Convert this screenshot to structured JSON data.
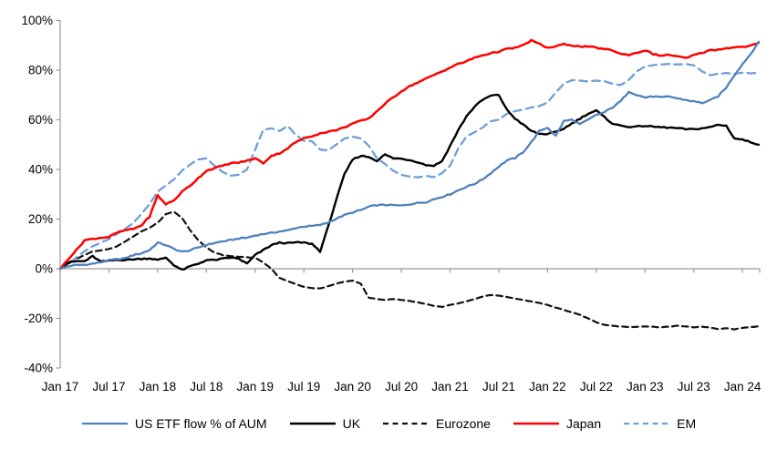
{
  "chart_data": {
    "type": "line",
    "title": "",
    "grid": "none",
    "legend_position": "bottom",
    "axis_color": "#9a9a9a",
    "text_color": "#000000",
    "y_axis": {
      "min": -40,
      "max": 100,
      "step": 20,
      "format": "percent",
      "tick_labels": [
        "100%",
        "80%",
        "60%",
        "40%",
        "20%",
        "0%",
        "-20%",
        "-40%"
      ]
    },
    "x_tick_labels": [
      "Jan 17",
      "Jul 17",
      "Jan 18",
      "Jul 18",
      "Jan 19",
      "Jul 19",
      "Jan 20",
      "Jul 20",
      "Jan 21",
      "Jul 21",
      "Jan 22",
      "Jul 22",
      "Jan 23",
      "Jul 23",
      "Jan 24"
    ],
    "x": [
      "2017-01",
      "2017-02",
      "2017-03",
      "2017-04",
      "2017-05",
      "2017-06",
      "2017-07",
      "2017-08",
      "2017-09",
      "2017-10",
      "2017-11",
      "2017-12",
      "2018-01",
      "2018-02",
      "2018-03",
      "2018-04",
      "2018-05",
      "2018-06",
      "2018-07",
      "2018-08",
      "2018-09",
      "2018-10",
      "2018-11",
      "2018-12",
      "2019-01",
      "2019-02",
      "2019-03",
      "2019-04",
      "2019-05",
      "2019-06",
      "2019-07",
      "2019-08",
      "2019-09",
      "2019-10",
      "2019-11",
      "2019-12",
      "2020-01",
      "2020-02",
      "2020-03",
      "2020-04",
      "2020-05",
      "2020-06",
      "2020-07",
      "2020-08",
      "2020-09",
      "2020-10",
      "2020-11",
      "2020-12",
      "2021-01",
      "2021-02",
      "2021-03",
      "2021-04",
      "2021-05",
      "2021-06",
      "2021-07",
      "2021-08",
      "2021-09",
      "2021-10",
      "2021-11",
      "2021-12",
      "2022-01",
      "2022-02",
      "2022-03",
      "2022-04",
      "2022-05",
      "2022-06",
      "2022-07",
      "2022-08",
      "2022-09",
      "2022-10",
      "2022-11",
      "2022-12",
      "2023-01",
      "2023-02",
      "2023-03",
      "2023-04",
      "2023-05",
      "2023-06",
      "2023-07",
      "2023-08",
      "2023-09",
      "2023-10",
      "2023-11",
      "2023-12",
      "2024-01",
      "2024-02",
      "2024-03"
    ],
    "series": [
      {
        "name": "US ETF flow % of AUM",
        "color": "#4f81bd",
        "style": "solid",
        "values": [
          0,
          1,
          1.5,
          1.6,
          2,
          2.6,
          3.4,
          3.8,
          4.2,
          5.5,
          6.2,
          7.5,
          10.5,
          9.5,
          8,
          6.8,
          7.4,
          8.6,
          9.6,
          10.4,
          11,
          11.5,
          12.2,
          12.5,
          13.4,
          14,
          14.4,
          15,
          15.4,
          16.4,
          17,
          17.2,
          17.6,
          18.6,
          20.2,
          21.6,
          22.7,
          23.6,
          25,
          25.6,
          25.7,
          25.6,
          25.4,
          26,
          26.5,
          26.8,
          28,
          29,
          30,
          31.6,
          33,
          34.2,
          36,
          38.5,
          41.2,
          43.6,
          44.6,
          47,
          51,
          55.5,
          56.9,
          53.5,
          59.5,
          60,
          58.2,
          60,
          62,
          63,
          65,
          67.5,
          71.4,
          70,
          69,
          69.4,
          69,
          69.4,
          68.6,
          68,
          67.4,
          66.8,
          67.8,
          69.5,
          73,
          78,
          82.5,
          86.5,
          91.5
        ]
      },
      {
        "name": "UK",
        "color": "#000000",
        "style": "solid",
        "values": [
          0,
          2.5,
          3,
          3,
          5,
          2.8,
          3.2,
          3.6,
          3.5,
          3.8,
          4,
          4.2,
          3.5,
          4.5,
          1.5,
          -0.5,
          1,
          2,
          3.5,
          3.5,
          4,
          4.5,
          4,
          2,
          5.5,
          7.5,
          9.5,
          10.5,
          10.3,
          10.6,
          10.5,
          10,
          7,
          17,
          28,
          38,
          44,
          45.5,
          45,
          43.5,
          46,
          44.5,
          44.3,
          43.8,
          43,
          41.8,
          41.5,
          43.3,
          49.5,
          55.8,
          61.3,
          65.3,
          68,
          69.7,
          70,
          64,
          60.5,
          58,
          55.5,
          54.3,
          54.3,
          55,
          56.5,
          58.5,
          60.5,
          62.5,
          63.7,
          61,
          58.5,
          57.6,
          57.2,
          57.2,
          57.6,
          57.2,
          57,
          56.8,
          56.6,
          56.2,
          56.2,
          56.6,
          57,
          58,
          57.6,
          52.5,
          52,
          51,
          50
        ]
      },
      {
        "name": "Eurozone",
        "color": "#111111",
        "style": "dashed",
        "values": [
          0,
          2,
          4,
          5.5,
          7,
          7.4,
          8,
          9,
          11,
          13,
          15,
          16.5,
          18.5,
          22,
          23,
          20.5,
          15.5,
          11.5,
          8.5,
          6.5,
          5.5,
          5,
          4.8,
          4.6,
          4.4,
          2.5,
          0,
          -3.7,
          -5,
          -6.2,
          -7.3,
          -7.8,
          -8,
          -7,
          -6,
          -5.2,
          -4.8,
          -6,
          -11.7,
          -12.2,
          -12.6,
          -12.2,
          -12.6,
          -13,
          -13.6,
          -14.2,
          -15,
          -15.4,
          -14.6,
          -14,
          -13.2,
          -12.2,
          -11.2,
          -10.6,
          -10.8,
          -11.4,
          -12,
          -12.6,
          -13.2,
          -13.8,
          -14.6,
          -15.6,
          -16.6,
          -17.6,
          -18.6,
          -20,
          -21.6,
          -22.6,
          -23,
          -23.3,
          -23.5,
          -23.4,
          -23.2,
          -23.4,
          -23.6,
          -23.3,
          -23,
          -23.3,
          -23.6,
          -23.3,
          -23.7,
          -24.3,
          -23.9,
          -24.4,
          -23.8,
          -23.5,
          -23.2
        ]
      },
      {
        "name": "Japan",
        "color": "#fe0000",
        "style": "solid",
        "values": [
          0,
          4,
          7.5,
          11.5,
          12,
          12.5,
          12.8,
          14.5,
          15.5,
          16,
          17.5,
          21,
          29.5,
          26,
          27.5,
          31,
          33.5,
          36.5,
          39.5,
          40.5,
          41.5,
          42.5,
          42.8,
          43.5,
          44.5,
          42.5,
          45.5,
          46.5,
          48.5,
          51,
          52.5,
          53.5,
          54.5,
          55.2,
          55.8,
          57,
          58.5,
          59.5,
          60.5,
          63.5,
          66.5,
          69,
          71.5,
          73.5,
          75,
          76.5,
          78,
          79.5,
          81,
          82.5,
          83.5,
          85,
          86,
          86.8,
          87.5,
          88.5,
          89,
          90,
          92,
          90.5,
          89,
          89.5,
          90.5,
          90,
          89.5,
          89.5,
          89,
          88.5,
          88,
          86.5,
          86.2,
          87,
          88,
          86.5,
          85.8,
          86.2,
          85.5,
          84.8,
          86,
          87,
          88,
          88.3,
          88.8,
          89.3,
          89.3,
          89.8,
          91
        ]
      },
      {
        "name": "EM",
        "color": "#6f9fd8",
        "style": "dashed",
        "values": [
          0,
          2,
          4.5,
          7,
          9,
          10.5,
          12,
          14,
          16,
          18.5,
          22,
          26,
          31,
          33.5,
          36,
          39.5,
          42,
          44,
          44.5,
          41.5,
          39,
          37.5,
          37.8,
          40,
          48,
          56,
          56.5,
          55.5,
          57.5,
          54,
          51.5,
          51.4,
          48,
          47.7,
          50,
          52.5,
          53.2,
          52.5,
          49.5,
          44.5,
          42.2,
          39.5,
          37.8,
          37.2,
          36.8,
          37.4,
          36.9,
          38.5,
          41.5,
          48.4,
          53.2,
          55,
          56.9,
          59.4,
          60,
          62.5,
          63.5,
          64,
          65,
          65.5,
          67,
          71,
          74.5,
          76,
          75.8,
          75.5,
          75.8,
          75.5,
          74.5,
          74,
          76,
          79.5,
          81.5,
          82,
          82.3,
          82.5,
          82.3,
          82.5,
          82,
          79.5,
          78,
          78.5,
          78.8,
          78.5,
          79,
          78.7,
          79
        ]
      }
    ]
  }
}
